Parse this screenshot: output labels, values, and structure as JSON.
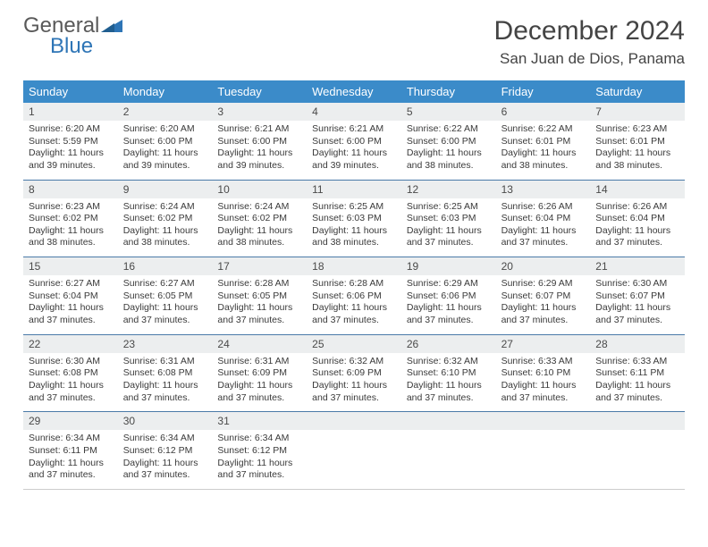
{
  "brand": {
    "part1": "General",
    "part2": "Blue"
  },
  "title": "December 2024",
  "location": "San Juan de Dios, Panama",
  "colors": {
    "header_bg": "#3b8bc9",
    "divider": "#4a7aa8",
    "daynum_bg": "#eceeef",
    "logo_gray": "#595959",
    "logo_blue": "#2e75b6"
  },
  "day_names": [
    "Sunday",
    "Monday",
    "Tuesday",
    "Wednesday",
    "Thursday",
    "Friday",
    "Saturday"
  ],
  "days": [
    {
      "n": "1",
      "sr": "Sunrise: 6:20 AM",
      "ss": "Sunset: 5:59 PM",
      "d1": "Daylight: 11 hours",
      "d2": "and 39 minutes."
    },
    {
      "n": "2",
      "sr": "Sunrise: 6:20 AM",
      "ss": "Sunset: 6:00 PM",
      "d1": "Daylight: 11 hours",
      "d2": "and 39 minutes."
    },
    {
      "n": "3",
      "sr": "Sunrise: 6:21 AM",
      "ss": "Sunset: 6:00 PM",
      "d1": "Daylight: 11 hours",
      "d2": "and 39 minutes."
    },
    {
      "n": "4",
      "sr": "Sunrise: 6:21 AM",
      "ss": "Sunset: 6:00 PM",
      "d1": "Daylight: 11 hours",
      "d2": "and 39 minutes."
    },
    {
      "n": "5",
      "sr": "Sunrise: 6:22 AM",
      "ss": "Sunset: 6:00 PM",
      "d1": "Daylight: 11 hours",
      "d2": "and 38 minutes."
    },
    {
      "n": "6",
      "sr": "Sunrise: 6:22 AM",
      "ss": "Sunset: 6:01 PM",
      "d1": "Daylight: 11 hours",
      "d2": "and 38 minutes."
    },
    {
      "n": "7",
      "sr": "Sunrise: 6:23 AM",
      "ss": "Sunset: 6:01 PM",
      "d1": "Daylight: 11 hours",
      "d2": "and 38 minutes."
    },
    {
      "n": "8",
      "sr": "Sunrise: 6:23 AM",
      "ss": "Sunset: 6:02 PM",
      "d1": "Daylight: 11 hours",
      "d2": "and 38 minutes."
    },
    {
      "n": "9",
      "sr": "Sunrise: 6:24 AM",
      "ss": "Sunset: 6:02 PM",
      "d1": "Daylight: 11 hours",
      "d2": "and 38 minutes."
    },
    {
      "n": "10",
      "sr": "Sunrise: 6:24 AM",
      "ss": "Sunset: 6:02 PM",
      "d1": "Daylight: 11 hours",
      "d2": "and 38 minutes."
    },
    {
      "n": "11",
      "sr": "Sunrise: 6:25 AM",
      "ss": "Sunset: 6:03 PM",
      "d1": "Daylight: 11 hours",
      "d2": "and 38 minutes."
    },
    {
      "n": "12",
      "sr": "Sunrise: 6:25 AM",
      "ss": "Sunset: 6:03 PM",
      "d1": "Daylight: 11 hours",
      "d2": "and 37 minutes."
    },
    {
      "n": "13",
      "sr": "Sunrise: 6:26 AM",
      "ss": "Sunset: 6:04 PM",
      "d1": "Daylight: 11 hours",
      "d2": "and 37 minutes."
    },
    {
      "n": "14",
      "sr": "Sunrise: 6:26 AM",
      "ss": "Sunset: 6:04 PM",
      "d1": "Daylight: 11 hours",
      "d2": "and 37 minutes."
    },
    {
      "n": "15",
      "sr": "Sunrise: 6:27 AM",
      "ss": "Sunset: 6:04 PM",
      "d1": "Daylight: 11 hours",
      "d2": "and 37 minutes."
    },
    {
      "n": "16",
      "sr": "Sunrise: 6:27 AM",
      "ss": "Sunset: 6:05 PM",
      "d1": "Daylight: 11 hours",
      "d2": "and 37 minutes."
    },
    {
      "n": "17",
      "sr": "Sunrise: 6:28 AM",
      "ss": "Sunset: 6:05 PM",
      "d1": "Daylight: 11 hours",
      "d2": "and 37 minutes."
    },
    {
      "n": "18",
      "sr": "Sunrise: 6:28 AM",
      "ss": "Sunset: 6:06 PM",
      "d1": "Daylight: 11 hours",
      "d2": "and 37 minutes."
    },
    {
      "n": "19",
      "sr": "Sunrise: 6:29 AM",
      "ss": "Sunset: 6:06 PM",
      "d1": "Daylight: 11 hours",
      "d2": "and 37 minutes."
    },
    {
      "n": "20",
      "sr": "Sunrise: 6:29 AM",
      "ss": "Sunset: 6:07 PM",
      "d1": "Daylight: 11 hours",
      "d2": "and 37 minutes."
    },
    {
      "n": "21",
      "sr": "Sunrise: 6:30 AM",
      "ss": "Sunset: 6:07 PM",
      "d1": "Daylight: 11 hours",
      "d2": "and 37 minutes."
    },
    {
      "n": "22",
      "sr": "Sunrise: 6:30 AM",
      "ss": "Sunset: 6:08 PM",
      "d1": "Daylight: 11 hours",
      "d2": "and 37 minutes."
    },
    {
      "n": "23",
      "sr": "Sunrise: 6:31 AM",
      "ss": "Sunset: 6:08 PM",
      "d1": "Daylight: 11 hours",
      "d2": "and 37 minutes."
    },
    {
      "n": "24",
      "sr": "Sunrise: 6:31 AM",
      "ss": "Sunset: 6:09 PM",
      "d1": "Daylight: 11 hours",
      "d2": "and 37 minutes."
    },
    {
      "n": "25",
      "sr": "Sunrise: 6:32 AM",
      "ss": "Sunset: 6:09 PM",
      "d1": "Daylight: 11 hours",
      "d2": "and 37 minutes."
    },
    {
      "n": "26",
      "sr": "Sunrise: 6:32 AM",
      "ss": "Sunset: 6:10 PM",
      "d1": "Daylight: 11 hours",
      "d2": "and 37 minutes."
    },
    {
      "n": "27",
      "sr": "Sunrise: 6:33 AM",
      "ss": "Sunset: 6:10 PM",
      "d1": "Daylight: 11 hours",
      "d2": "and 37 minutes."
    },
    {
      "n": "28",
      "sr": "Sunrise: 6:33 AM",
      "ss": "Sunset: 6:11 PM",
      "d1": "Daylight: 11 hours",
      "d2": "and 37 minutes."
    },
    {
      "n": "29",
      "sr": "Sunrise: 6:34 AM",
      "ss": "Sunset: 6:11 PM",
      "d1": "Daylight: 11 hours",
      "d2": "and 37 minutes."
    },
    {
      "n": "30",
      "sr": "Sunrise: 6:34 AM",
      "ss": "Sunset: 6:12 PM",
      "d1": "Daylight: 11 hours",
      "d2": "and 37 minutes."
    },
    {
      "n": "31",
      "sr": "Sunrise: 6:34 AM",
      "ss": "Sunset: 6:12 PM",
      "d1": "Daylight: 11 hours",
      "d2": "and 37 minutes."
    }
  ]
}
